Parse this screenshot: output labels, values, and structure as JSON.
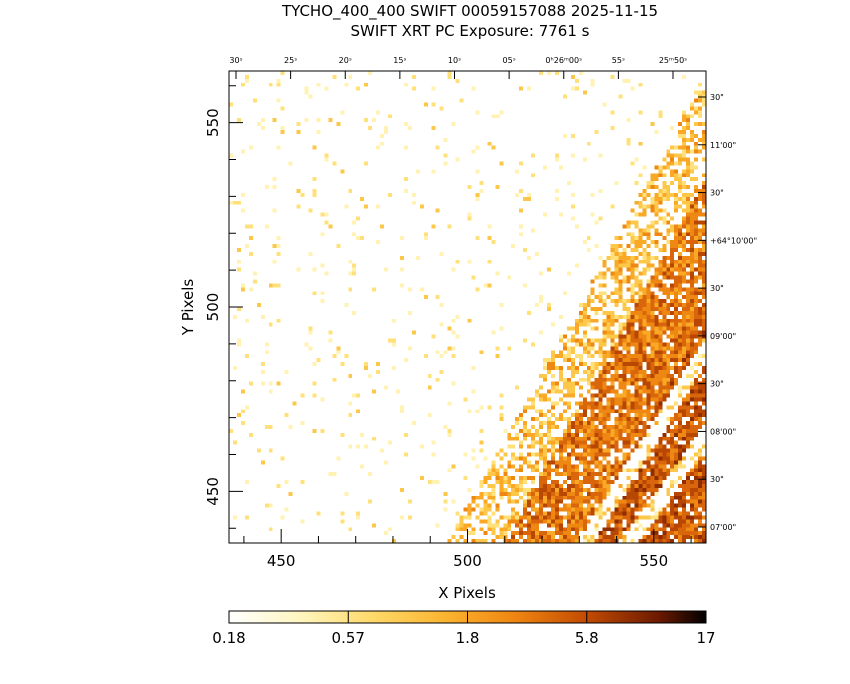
{
  "title_line1": "TYCHO_400_400 SWIFT 00059157088 2025-11-15",
  "title_line2": "SWIFT XRT PC Exposure:       7761 s",
  "chart_data": {
    "type": "heatmap",
    "xlabel": "X Pixels",
    "ylabel": "Y Pixels",
    "xlim": [
      436,
      564
    ],
    "ylim": [
      436,
      564
    ],
    "x_ticks": [
      450,
      500,
      550
    ],
    "y_ticks": [
      450,
      500,
      550
    ],
    "ra_ticks": [
      "30ˢ",
      "25ˢ",
      "20ˢ",
      "15ˢ",
      "10ˢ",
      "05ˢ",
      "0ʰ26ᵐ00ˢ",
      "55ˢ",
      "25ᵐ50ˢ"
    ],
    "dec_ticks": [
      "30\"",
      "11'00\"",
      "30\"",
      "+64°10'00\"",
      "30\"",
      "09'00\"",
      "30\"",
      "08'00\"",
      "30\"",
      "07'00\""
    ],
    "colorbar": {
      "scale": "log",
      "tick_labels": [
        "0.18",
        "0.57",
        "1.8",
        "5.8",
        "17"
      ],
      "colors": [
        "#ffffff",
        "#ffe87a",
        "#fdbb2d",
        "#f08a0a",
        "#c94a00",
        "#7a1e00",
        "#000000"
      ]
    }
  }
}
